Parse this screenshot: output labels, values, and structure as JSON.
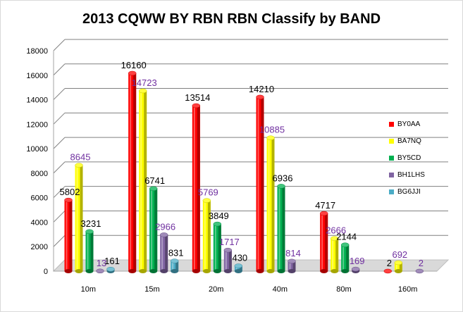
{
  "chart_data": {
    "type": "bar",
    "title": "2013 CQWW BY RBN RBN  Classify by BAND",
    "xlabel": "",
    "ylabel": "",
    "categories": [
      "10m",
      "15m",
      "20m",
      "40m",
      "80m",
      "160m"
    ],
    "ylim": [
      0,
      18000
    ],
    "yticks": [
      0,
      2000,
      4000,
      6000,
      8000,
      10000,
      12000,
      14000,
      16000,
      18000
    ],
    "grid": true,
    "legend_position": "right",
    "series": [
      {
        "name": "BY0AA",
        "color": "#ff0000",
        "label_color": "#000000",
        "values": [
          5802,
          16160,
          13514,
          14210,
          4717,
          2
        ]
      },
      {
        "name": "BA7NQ",
        "color": "#ffff00",
        "label_color": "#7030a0",
        "values": [
          8645,
          14723,
          5769,
          10885,
          2666,
          692
        ]
      },
      {
        "name": "BY5CD",
        "color": "#00b050",
        "label_color": "#000000",
        "values": [
          3231,
          6741,
          3849,
          6936,
          2144,
          null
        ]
      },
      {
        "name": "BH1LHS",
        "color": "#8064a2",
        "label_color": "#7030a0",
        "values": [
          13,
          2966,
          1717,
          814,
          169,
          2
        ]
      },
      {
        "name": "BG6JJI",
        "color": "#4bacc6",
        "label_color": "#000000",
        "values": [
          161,
          831,
          430,
          null,
          null,
          null
        ]
      }
    ]
  }
}
